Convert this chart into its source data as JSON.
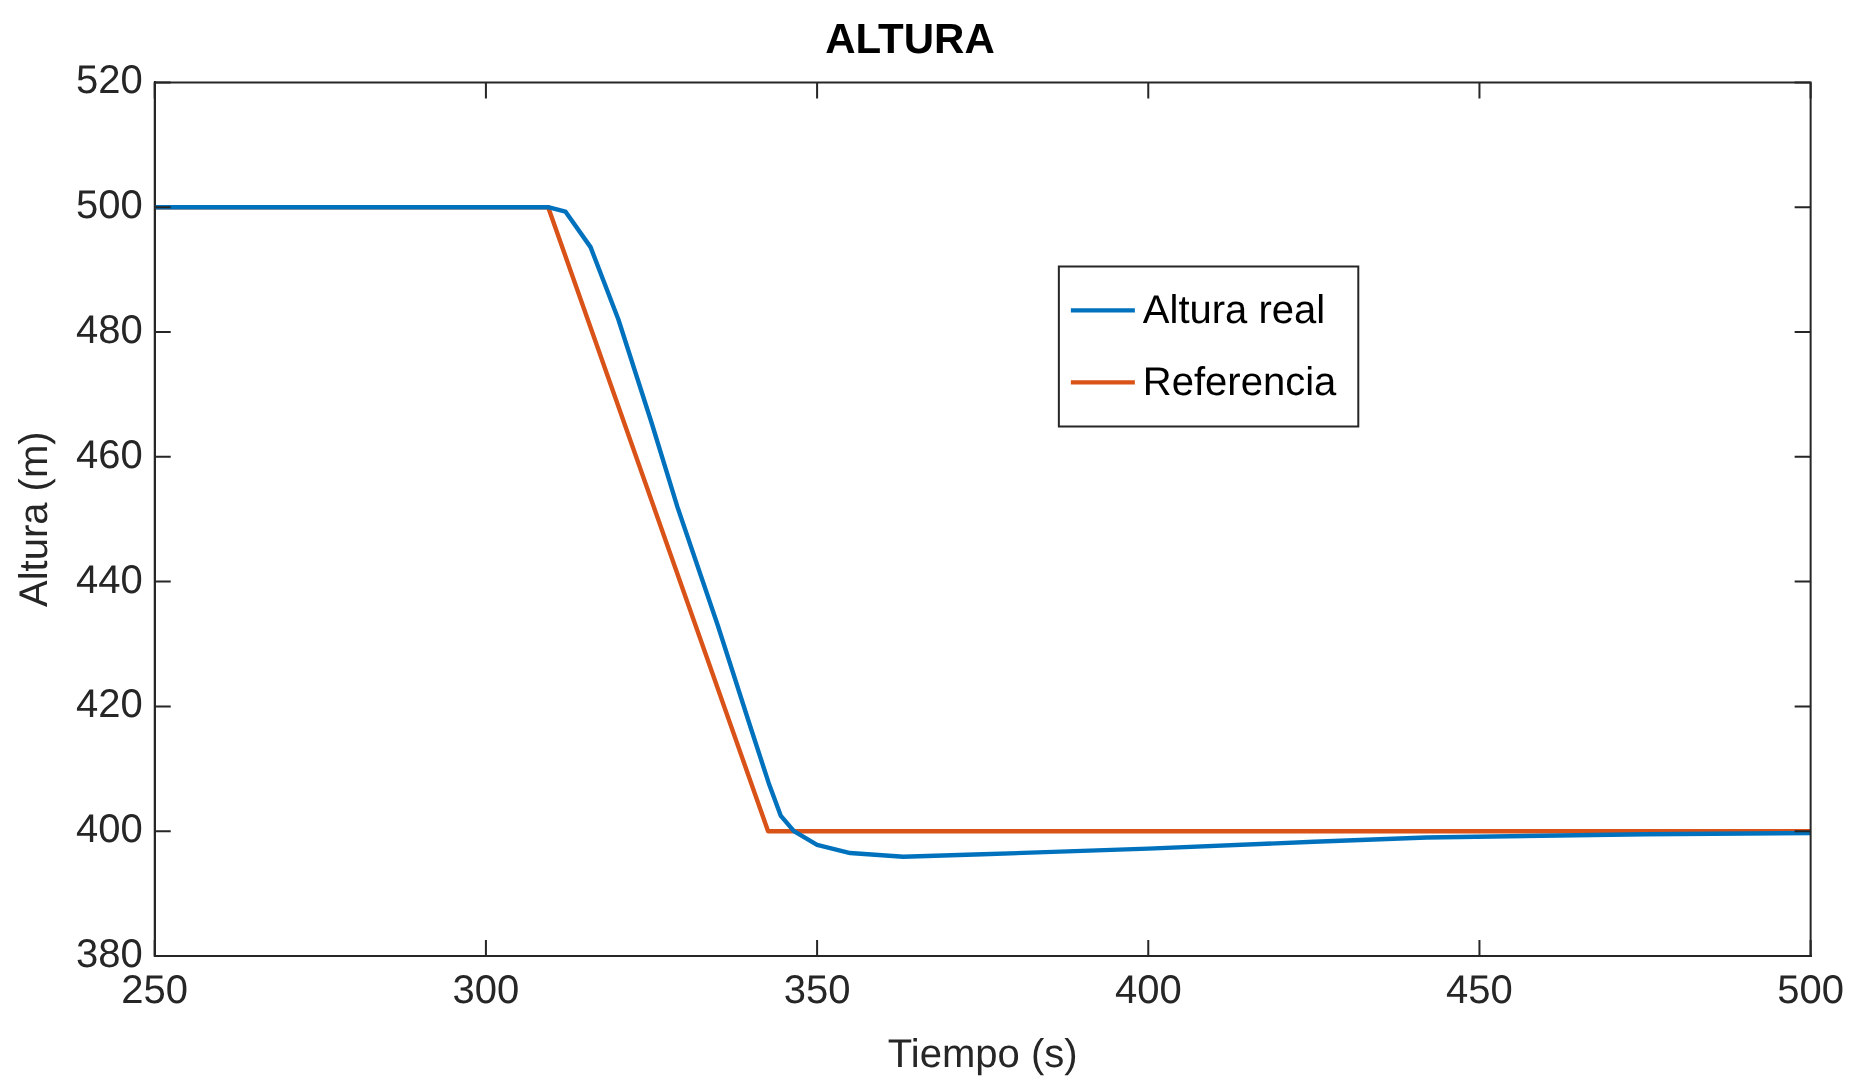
{
  "chart_data": {
    "type": "line",
    "title": "ALTURA",
    "xlabel": "Tiempo (s)",
    "ylabel": "Altura (m)",
    "xlim": [
      250,
      500
    ],
    "xticks": [
      250,
      300,
      350,
      400,
      450,
      500
    ],
    "ylim": [
      380,
      520
    ],
    "yticks": [
      380,
      400,
      420,
      440,
      460,
      480,
      500,
      520
    ],
    "grid": false,
    "legend": "top right",
    "marker": "none",
    "line_style": "solid",
    "series": [
      {
        "name": "Altura real",
        "color": "#0072bd",
        "x": [
          250,
          309.4,
          312,
          315.8,
          320,
          325,
          328.9,
          335,
          340,
          342.7,
          344.5,
          346.5,
          350,
          355,
          363,
          375,
          400,
          425,
          442,
          475,
          500
        ],
        "values": [
          500,
          500,
          499.3,
          493.6,
          482,
          465.5,
          452,
          433,
          416.5,
          407.7,
          402.5,
          400,
          397.8,
          396.5,
          395.9,
          396.3,
          397.2,
          398.3,
          399,
          399.5,
          399.7
        ]
      },
      {
        "name": "Referencia",
        "color": "#d95319",
        "x": [
          250,
          309.4,
          342.6,
          500
        ],
        "values": [
          500,
          500,
          400,
          400
        ]
      }
    ]
  }
}
